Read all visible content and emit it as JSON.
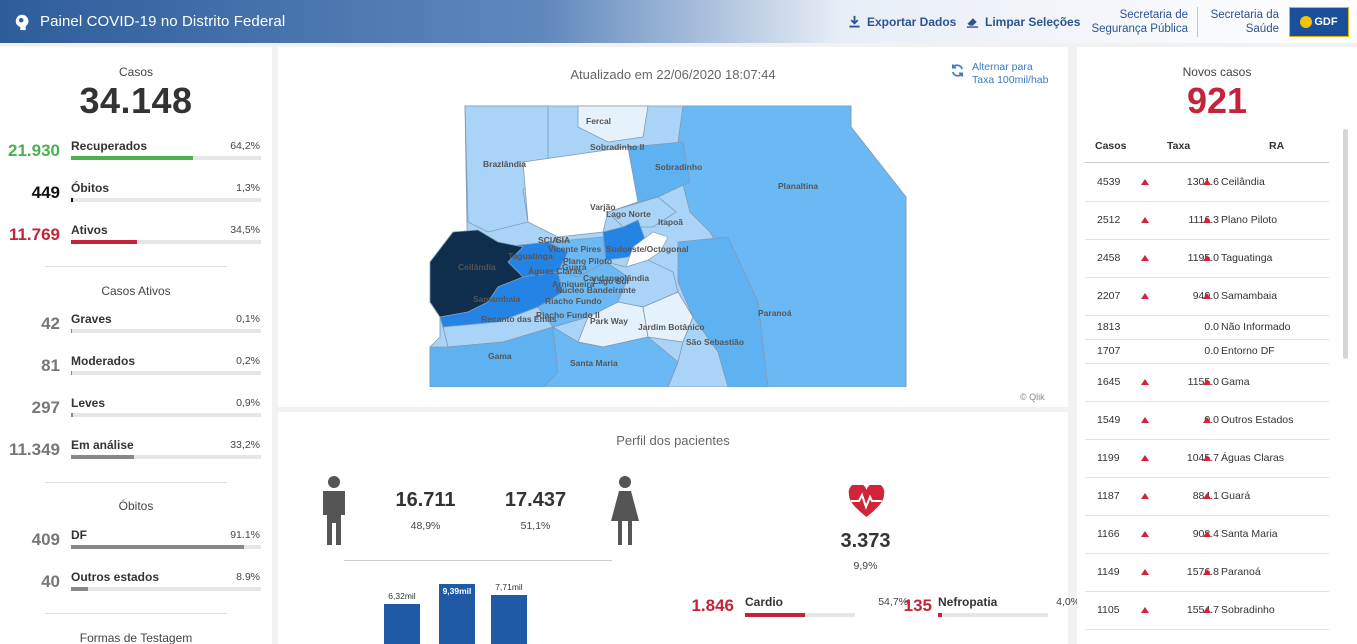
{
  "header": {
    "title": "Painel COVID-19 no Distrito Federal",
    "export_label": "Exportar Dados",
    "clear_label": "Limpar Seleções",
    "link_security": [
      "Secretaria de",
      "Segurança Pública"
    ],
    "link_health": [
      "Secretaria da",
      "Saúde"
    ],
    "gdf_label": "GDF"
  },
  "summary": {
    "cases_label": "Casos",
    "cases_total": "34.148",
    "rows": [
      {
        "value": "21.930",
        "label": "Recuperados",
        "pct": "64,2%",
        "fraction": 0.642,
        "color": "#4caf50"
      },
      {
        "value": "449",
        "label": "Óbitos",
        "pct": "1,3%",
        "fraction": 0.013,
        "color": "#111111"
      },
      {
        "value": "11.769",
        "label": "Ativos",
        "pct": "34,5%",
        "fraction": 0.345,
        "color": "#c4243b"
      }
    ]
  },
  "active_cases": {
    "title": "Casos Ativos",
    "rows": [
      {
        "value": "42",
        "label": "Graves",
        "pct": "0,1%",
        "fraction": 0.001
      },
      {
        "value": "81",
        "label": "Moderados",
        "pct": "0,2%",
        "fraction": 0.002
      },
      {
        "value": "297",
        "label": "Leves",
        "pct": "0,9%",
        "fraction": 0.009
      },
      {
        "value": "11.349",
        "label": "Em análise",
        "pct": "33,2%",
        "fraction": 0.332
      }
    ]
  },
  "deaths": {
    "title": "Óbitos",
    "rows": [
      {
        "value": "409",
        "label": "DF",
        "pct": "91.1%",
        "fraction": 0.911
      },
      {
        "value": "40",
        "label": "Outros estados",
        "pct": "8.9%",
        "fraction": 0.089
      }
    ]
  },
  "testing": {
    "title": "Formas de Testagem"
  },
  "map": {
    "updated": "Atualizado em 22/06/2020 18:07:44",
    "toggle_label": [
      "Alternar para",
      "Taxa 100mil/hab"
    ],
    "credit": "© Qlik",
    "labels": [
      "Fercal",
      "Sobradinho II",
      "Brazlândia",
      "Sobradinho",
      "Planaltina",
      "Varjão",
      "Lago Norte",
      "Itapoã",
      "SCIA",
      "SIA",
      "Vicente Pires",
      "Sudoeste/Octogonal",
      "Taguatinga",
      "Ceilândia",
      "Plano Piloto",
      "Águas Claras",
      "Guará",
      "Arniqueira",
      "Candangolândia",
      "Lago Sul",
      "Núcleo Bandeirante",
      "Riacho Fundo",
      "Samambaia",
      "Recanto das Emas",
      "Riacho Fundo II",
      "Park Way",
      "Jardim Botânico",
      "Paranoá",
      "São Sebastião",
      "Gama",
      "Santa Maria"
    ]
  },
  "profile": {
    "title": "Perfil dos pacientes",
    "male": {
      "value": "16.711",
      "pct": "48,9%"
    },
    "female": {
      "value": "17.437",
      "pct": "51,1%"
    },
    "comorbidity_total": "3.373",
    "comorbidity_pct": "9,9%",
    "age_bars": [
      {
        "label": "6,32mil",
        "value": 6.32
      },
      {
        "label": "9,39mil",
        "value": 9.39
      },
      {
        "label": "7,71mil",
        "value": 7.71
      }
    ],
    "comorbidities": [
      {
        "value": "1.846",
        "label": "Cardio",
        "pct": "54,7%",
        "fraction": 0.547
      },
      {
        "value": "135",
        "label": "Nefropatia",
        "pct": "4,0%",
        "fraction": 0.04
      }
    ]
  },
  "new_cases": {
    "title": "Novos casos",
    "total": "921",
    "columns": [
      "Casos",
      "Taxa",
      "RA"
    ],
    "rows": [
      {
        "casos": "4539",
        "taxa": "1301.6",
        "ra": "Ceilândia",
        "arrows": true
      },
      {
        "casos": "2512",
        "taxa": "1116.3",
        "ra": "Plano Piloto",
        "arrows": true
      },
      {
        "casos": "2458",
        "taxa": "1195.0",
        "ra": "Taguatinga",
        "arrows": true
      },
      {
        "casos": "2207",
        "taxa": "940.0",
        "ra": "Samambaia",
        "arrows": true
      },
      {
        "casos": "1813",
        "taxa": "0.0",
        "ra": "Não Informado",
        "arrows": false
      },
      {
        "casos": "1707",
        "taxa": "0.0",
        "ra": "Entorno DF",
        "arrows": false
      },
      {
        "casos": "1645",
        "taxa": "1155.0",
        "ra": "Gama",
        "arrows": true
      },
      {
        "casos": "1549",
        "taxa": "0.0",
        "ra": "Outros Estados",
        "arrows": true
      },
      {
        "casos": "1199",
        "taxa": "1045.7",
        "ra": "Águas Claras",
        "arrows": true
      },
      {
        "casos": "1187",
        "taxa": "884.1",
        "ra": "Guará",
        "arrows": true
      },
      {
        "casos": "1166",
        "taxa": "908.4",
        "ra": "Santa Maria",
        "arrows": true
      },
      {
        "casos": "1149",
        "taxa": "1576.8",
        "ra": "Paranoá",
        "arrows": true
      },
      {
        "casos": "1105",
        "taxa": "1554.7",
        "ra": "Sobradinho",
        "arrows": true
      }
    ]
  }
}
